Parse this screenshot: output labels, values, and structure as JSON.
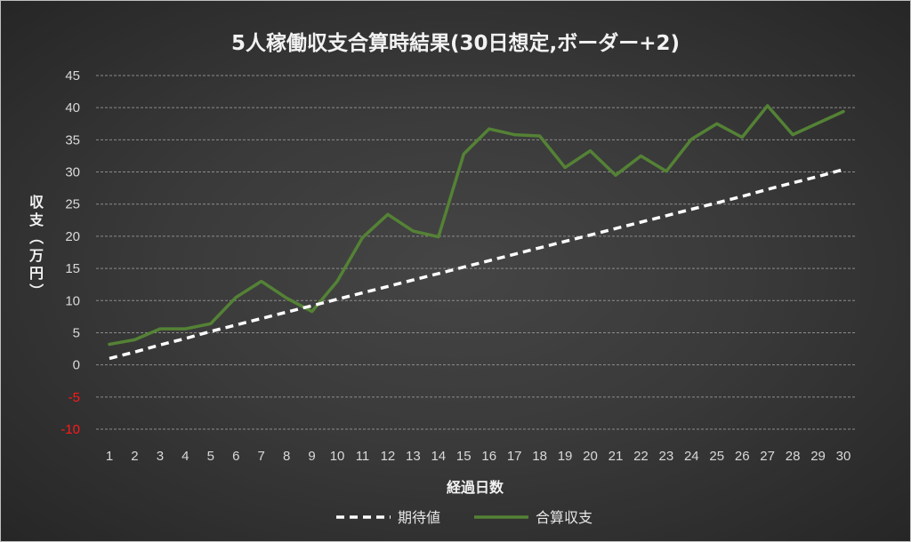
{
  "chart_data": {
    "type": "line",
    "title": "5人稼働収支合算時結果(30日想定,ボーダー+2)",
    "xlabel": "経過日数",
    "ylabel": "収支（万円）",
    "categories": [
      "1",
      "2",
      "3",
      "4",
      "5",
      "6",
      "7",
      "8",
      "9",
      "10",
      "11",
      "12",
      "13",
      "14",
      "15",
      "16",
      "17",
      "18",
      "19",
      "20",
      "21",
      "22",
      "23",
      "24",
      "25",
      "26",
      "27",
      "28",
      "29",
      "30"
    ],
    "ylim": [
      -10,
      45
    ],
    "yticks": [
      "45",
      "40",
      "35",
      "30",
      "25",
      "20",
      "15",
      "10",
      "5",
      "0",
      "-5",
      "-10"
    ],
    "negative_tick_color": "#ff1a1a",
    "grid": true,
    "legend_position": "bottom",
    "series": [
      {
        "name": "期待値",
        "color": "#ffffff",
        "style": "dashed",
        "values": [
          1.0,
          2.0,
          3.1,
          4.1,
          5.2,
          6.2,
          7.2,
          8.2,
          9.2,
          10.2,
          11.2,
          12.2,
          13.2,
          14.2,
          15.2,
          16.2,
          17.2,
          18.2,
          19.2,
          20.2,
          21.2,
          22.2,
          23.2,
          24.2,
          25.2,
          26.2,
          27.3,
          28.3,
          29.3,
          30.4
        ]
      },
      {
        "name": "合算収支",
        "color": "#548235",
        "style": "solid",
        "values": [
          3.2,
          3.9,
          5.6,
          5.6,
          6.4,
          10.5,
          13.0,
          10.4,
          8.3,
          13.0,
          19.8,
          23.4,
          20.8,
          19.9,
          32.8,
          36.7,
          35.8,
          35.6,
          30.7,
          33.3,
          29.5,
          32.5,
          30.1,
          35.1,
          37.5,
          35.4,
          40.3,
          35.8,
          37.6,
          39.4
        ]
      }
    ]
  }
}
